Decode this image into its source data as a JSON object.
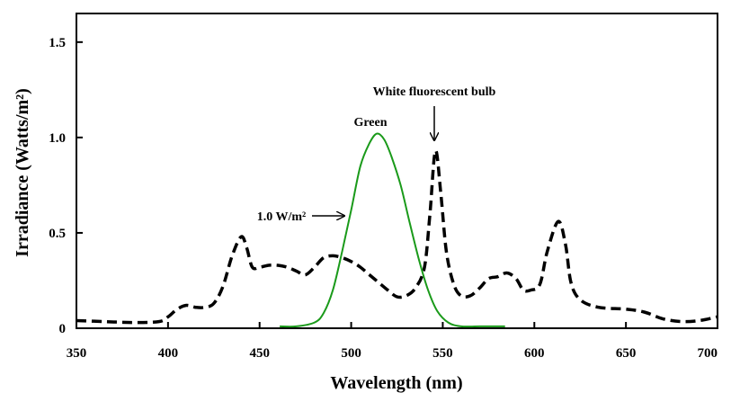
{
  "chart_data": {
    "type": "line",
    "xlabel": "Wavelength (nm)",
    "ylabel": "Irradiance (Watts/m²)",
    "xlim": [
      350,
      700
    ],
    "ylim": [
      0,
      1.65
    ],
    "x_ticks": [
      350,
      400,
      450,
      500,
      550,
      600,
      650,
      700
    ],
    "y_ticks": [
      {
        "value": 0,
        "label": "0"
      },
      {
        "value": 0.5,
        "label": "0.5"
      },
      {
        "value": 1.0,
        "label": "1.0"
      },
      {
        "value": 1.5,
        "label": "1.5"
      }
    ],
    "grid": false,
    "series": [
      {
        "name": "White fluorescent bulb",
        "style": "dashed",
        "color": "#000000",
        "points": [
          [
            350,
            0.04
          ],
          [
            365,
            0.035
          ],
          [
            380,
            0.03
          ],
          [
            395,
            0.035
          ],
          [
            400,
            0.06
          ],
          [
            405,
            0.1
          ],
          [
            410,
            0.12
          ],
          [
            415,
            0.11
          ],
          [
            420,
            0.11
          ],
          [
            425,
            0.13
          ],
          [
            430,
            0.22
          ],
          [
            435,
            0.38
          ],
          [
            440,
            0.48
          ],
          [
            443,
            0.42
          ],
          [
            446,
            0.32
          ],
          [
            450,
            0.32
          ],
          [
            455,
            0.33
          ],
          [
            460,
            0.33
          ],
          [
            465,
            0.32
          ],
          [
            470,
            0.3
          ],
          [
            475,
            0.28
          ],
          [
            480,
            0.32
          ],
          [
            485,
            0.37
          ],
          [
            490,
            0.38
          ],
          [
            495,
            0.37
          ],
          [
            500,
            0.35
          ],
          [
            505,
            0.32
          ],
          [
            510,
            0.28
          ],
          [
            515,
            0.24
          ],
          [
            520,
            0.2
          ],
          [
            525,
            0.165
          ],
          [
            530,
            0.17
          ],
          [
            535,
            0.21
          ],
          [
            540,
            0.32
          ],
          [
            543,
            0.6
          ],
          [
            546,
            0.93
          ],
          [
            549,
            0.7
          ],
          [
            552,
            0.4
          ],
          [
            556,
            0.23
          ],
          [
            560,
            0.17
          ],
          [
            565,
            0.17
          ],
          [
            570,
            0.21
          ],
          [
            575,
            0.26
          ],
          [
            580,
            0.27
          ],
          [
            585,
            0.29
          ],
          [
            590,
            0.26
          ],
          [
            594,
            0.2
          ],
          [
            598,
            0.2
          ],
          [
            603,
            0.23
          ],
          [
            607,
            0.4
          ],
          [
            613,
            0.56
          ],
          [
            617,
            0.44
          ],
          [
            620,
            0.24
          ],
          [
            625,
            0.15
          ],
          [
            635,
            0.11
          ],
          [
            650,
            0.1
          ],
          [
            660,
            0.085
          ],
          [
            670,
            0.05
          ],
          [
            680,
            0.035
          ],
          [
            690,
            0.04
          ],
          [
            700,
            0.06
          ]
        ]
      },
      {
        "name": "Green",
        "style": "solid",
        "color": "#1a9a1a",
        "points": [
          [
            461,
            0.01
          ],
          [
            470,
            0.01
          ],
          [
            480,
            0.03
          ],
          [
            485,
            0.08
          ],
          [
            490,
            0.2
          ],
          [
            495,
            0.4
          ],
          [
            500,
            0.62
          ],
          [
            505,
            0.85
          ],
          [
            510,
            0.97
          ],
          [
            514,
            1.02
          ],
          [
            518,
            0.99
          ],
          [
            522,
            0.9
          ],
          [
            527,
            0.75
          ],
          [
            532,
            0.55
          ],
          [
            537,
            0.36
          ],
          [
            542,
            0.2
          ],
          [
            547,
            0.09
          ],
          [
            553,
            0.03
          ],
          [
            560,
            0.01
          ],
          [
            570,
            0.01
          ],
          [
            584,
            0.01
          ]
        ]
      }
    ],
    "annotations": [
      {
        "id": "bulb",
        "text": "White fluorescent bulb",
        "arrow_target": [
          546,
          0.96
        ]
      },
      {
        "id": "green",
        "text": "Green"
      },
      {
        "id": "area",
        "text": "1.0 W/m²",
        "arrow_target": [
          500,
          0.58
        ]
      }
    ]
  }
}
